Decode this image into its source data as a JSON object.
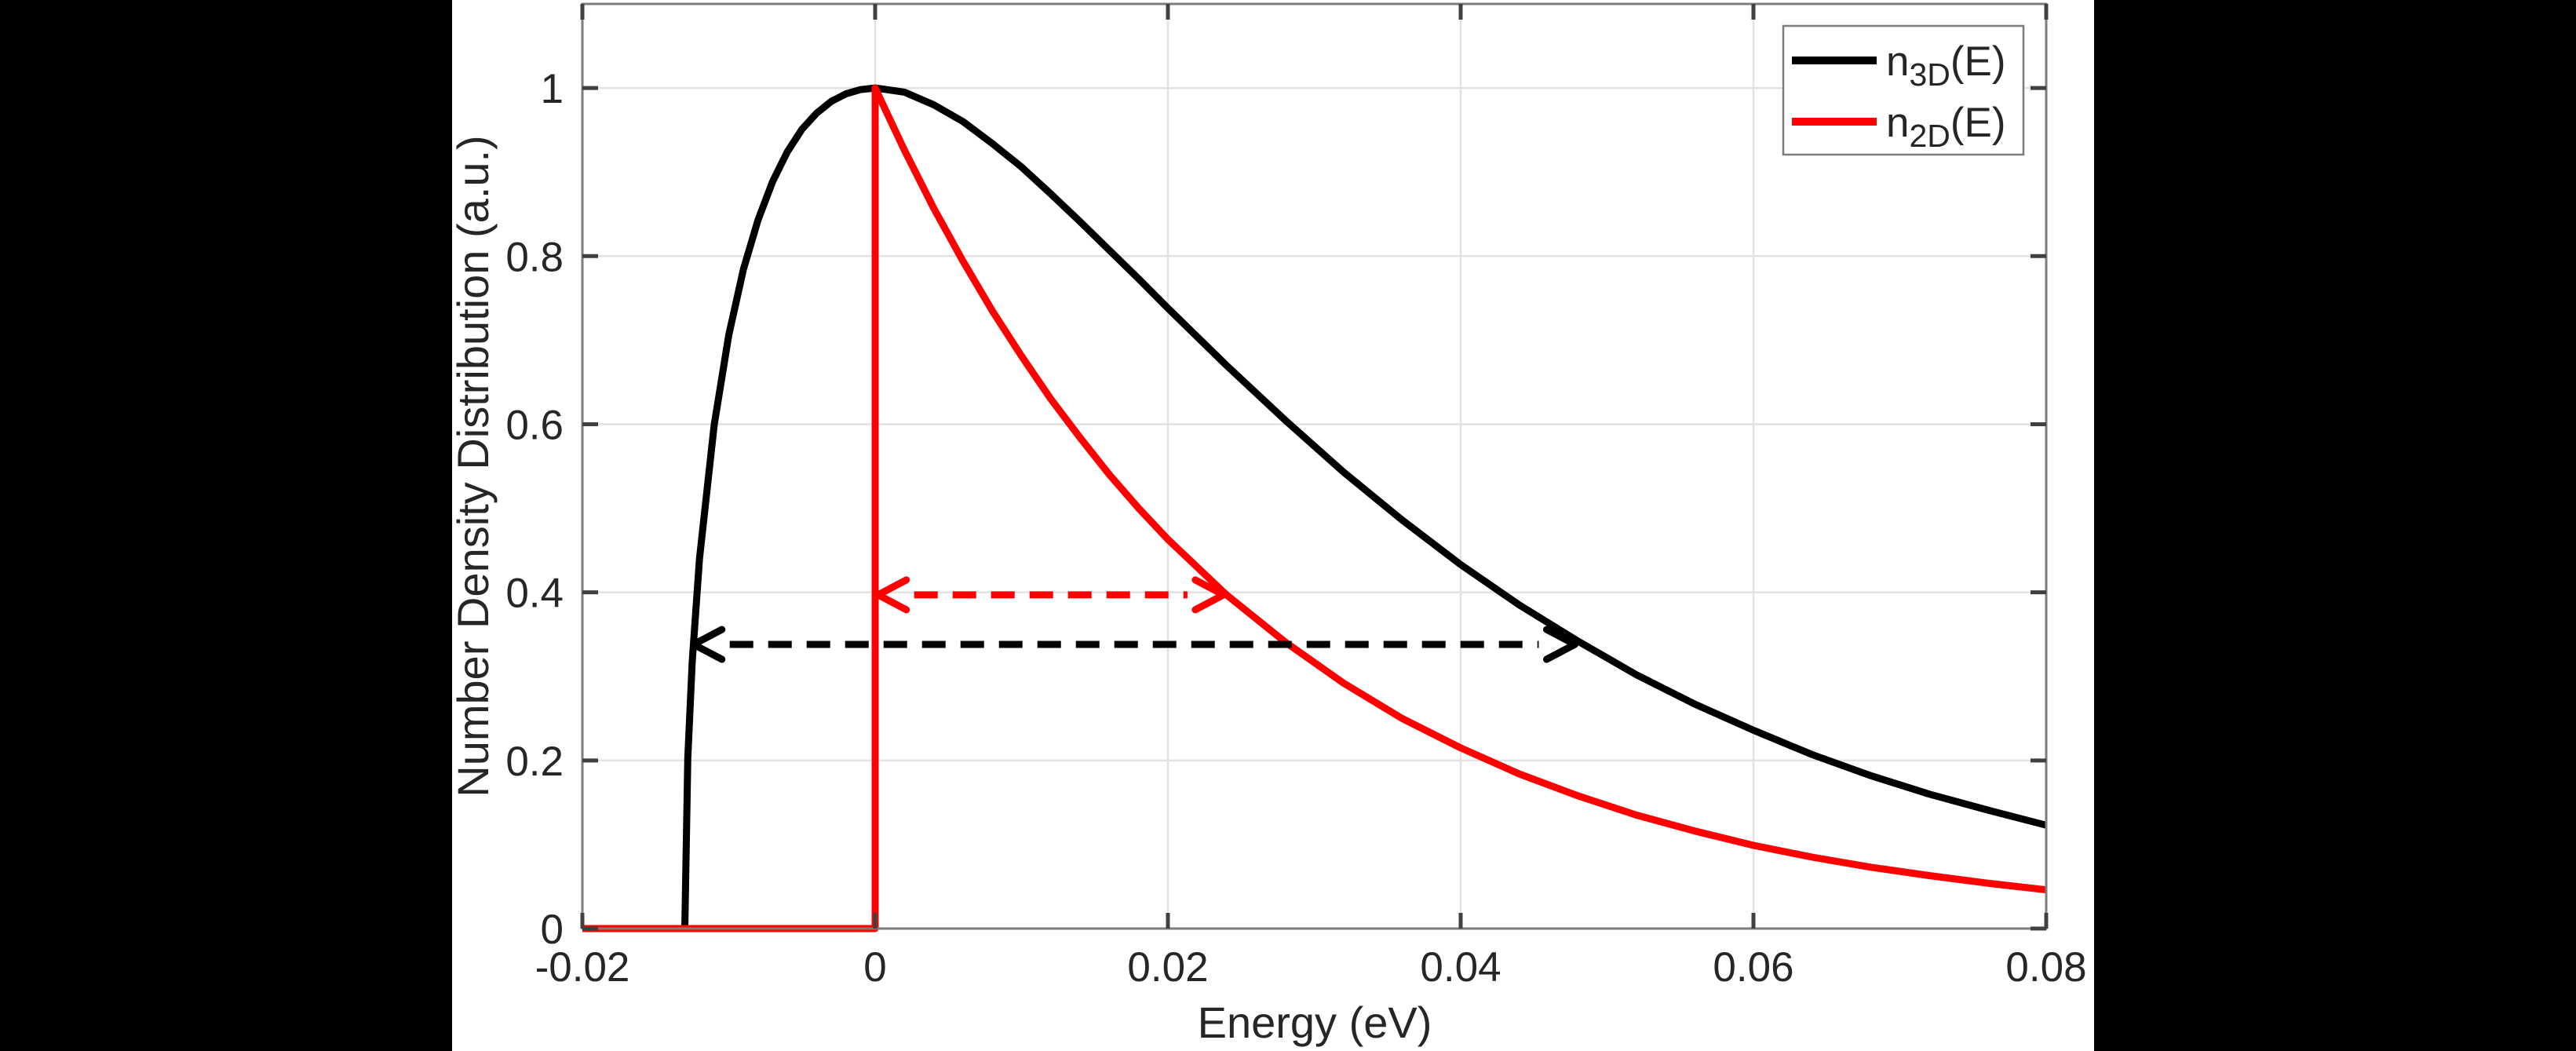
{
  "figure": {
    "background": "#000000",
    "canvas_background": "#ffffff"
  },
  "axes": {
    "xlabel": "Energy (eV)",
    "ylabel": "Number Density Distribution (a.u.)",
    "xlim": [
      -0.02,
      0.08
    ],
    "ylim": [
      0,
      1.1
    ],
    "grid": true,
    "x_ticks": [
      {
        "value": -0.02,
        "label": "-0.02"
      },
      {
        "value": 0,
        "label": "0"
      },
      {
        "value": 0.02,
        "label": "0.02"
      },
      {
        "value": 0.04,
        "label": "0.04"
      },
      {
        "value": 0.06,
        "label": "0.06"
      },
      {
        "value": 0.08,
        "label": "0.08"
      }
    ],
    "y_ticks": [
      {
        "value": 0,
        "label": "0"
      },
      {
        "value": 0.2,
        "label": "0.2"
      },
      {
        "value": 0.4,
        "label": "0.4"
      },
      {
        "value": 0.6,
        "label": "0.6"
      },
      {
        "value": 0.8,
        "label": "0.8"
      },
      {
        "value": 1,
        "label": "1"
      }
    ],
    "colors": {
      "grid": "#e2e2e2",
      "box": "#7d7d7d",
      "tick": "#404040",
      "text": "#262626"
    }
  },
  "legend": {
    "position": "northeast",
    "entries": [
      {
        "base": "n",
        "sub": "3D",
        "rest": "(E)",
        "color": "#000000"
      },
      {
        "base": "n",
        "sub": "2D",
        "rest": "(E)",
        "color": "#ff0000"
      }
    ]
  },
  "chart_data": {
    "type": "line",
    "title": "",
    "xlabel": "Energy (eV)",
    "ylabel": "Number Density Distribution (a.u.)",
    "xlim": [
      -0.02,
      0.08
    ],
    "ylim": [
      0,
      1.1
    ],
    "grid": true,
    "legend_position": "northeast",
    "series": [
      {
        "name": "n_3D(E)",
        "color": "#000000",
        "x": [
          -0.02,
          -0.013,
          -0.0128,
          -0.0125,
          -0.012,
          -0.011,
          -0.01,
          -0.009,
          -0.008,
          -0.007,
          -0.006,
          -0.005,
          -0.004,
          -0.003,
          -0.002,
          -0.001,
          0,
          0.002,
          0.004,
          0.006,
          0.008,
          0.01,
          0.012,
          0.014,
          0.016,
          0.018,
          0.02,
          0.024,
          0.028,
          0.032,
          0.036,
          0.04,
          0.044,
          0.048,
          0.052,
          0.056,
          0.06,
          0.064,
          0.068,
          0.072,
          0.076,
          0.08
        ],
        "y": [
          0,
          0,
          0.203,
          0.317,
          0.44,
          0.599,
          0.706,
          0.784,
          0.843,
          0.889,
          0.924,
          0.951,
          0.97,
          0.984,
          0.993,
          0.998,
          1.0,
          0.995,
          0.98,
          0.96,
          0.934,
          0.906,
          0.874,
          0.841,
          0.807,
          0.773,
          0.738,
          0.67,
          0.605,
          0.543,
          0.486,
          0.433,
          0.385,
          0.342,
          0.302,
          0.267,
          0.236,
          0.207,
          0.182,
          0.16,
          0.141,
          0.123
        ]
      },
      {
        "name": "n_2D(E)",
        "color": "#ff0000",
        "x": [
          -0.02,
          0,
          0,
          0.002,
          0.004,
          0.006,
          0.008,
          0.01,
          0.012,
          0.014,
          0.016,
          0.018,
          0.02,
          0.024,
          0.028,
          0.032,
          0.036,
          0.04,
          0.044,
          0.048,
          0.052,
          0.056,
          0.06,
          0.064,
          0.068,
          0.072,
          0.076,
          0.08
        ],
        "y": [
          0,
          0,
          1.0,
          0.926,
          0.857,
          0.794,
          0.735,
          0.681,
          0.63,
          0.584,
          0.54,
          0.5,
          0.463,
          0.397,
          0.341,
          0.292,
          0.25,
          0.215,
          0.184,
          0.158,
          0.135,
          0.116,
          0.099,
          0.085,
          0.073,
          0.063,
          0.054,
          0.046
        ]
      }
    ],
    "annotations": [
      {
        "type": "double-arrow",
        "color": "#000000",
        "style": "dashed",
        "y": 0.338,
        "x_from": -0.0124,
        "x_to": 0.0478
      },
      {
        "type": "double-arrow",
        "color": "#ff0000",
        "style": "dashed",
        "y": 0.397,
        "x_from": 0.0002,
        "x_to": 0.0238
      }
    ]
  }
}
